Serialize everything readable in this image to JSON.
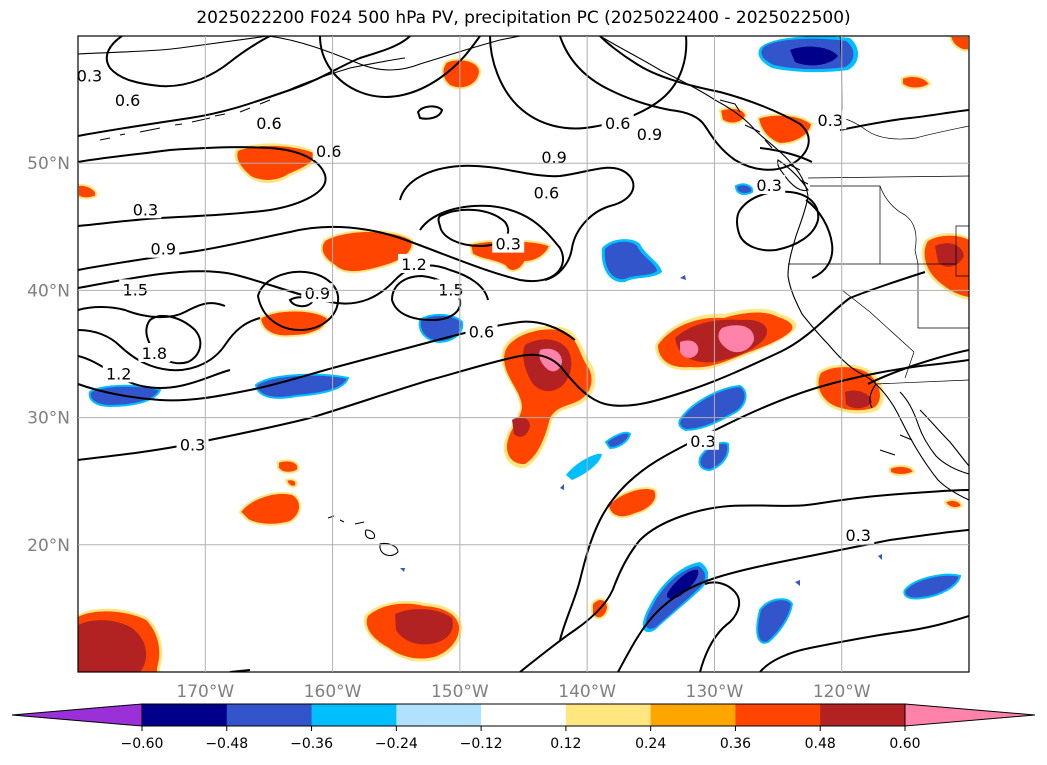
{
  "title": "2025022200 F024 500 hPa PV, precipitation PC (2025022400 - 2025022500)",
  "map": {
    "lon_range": [
      -180,
      -110
    ],
    "lat_range": [
      10,
      60
    ],
    "lon_ticks": [
      {
        "value": -170,
        "label": "170°W"
      },
      {
        "value": -160,
        "label": "160°W"
      },
      {
        "value": -150,
        "label": "150°W"
      },
      {
        "value": -140,
        "label": "140°W"
      },
      {
        "value": -130,
        "label": "130°W"
      },
      {
        "value": -120,
        "label": "120°W"
      }
    ],
    "lat_ticks": [
      {
        "value": 20,
        "label": "20°N"
      },
      {
        "value": 30,
        "label": "30°N"
      },
      {
        "value": 40,
        "label": "40°N"
      },
      {
        "value": 50,
        "label": "50°N"
      }
    ],
    "grid": true,
    "contour_labels": [
      {
        "text": "0.3",
        "lon": -179.1,
        "lat": 56.8
      },
      {
        "text": "0.6",
        "lon": -176.1,
        "lat": 54.9
      },
      {
        "text": "0.6",
        "lon": -165.0,
        "lat": 53.1
      },
      {
        "text": "0.6",
        "lon": -160.3,
        "lat": 50.9
      },
      {
        "text": "0.6",
        "lon": -137.6,
        "lat": 53.1
      },
      {
        "text": "0.9",
        "lon": -135.1,
        "lat": 52.2
      },
      {
        "text": "0.9",
        "lon": -142.6,
        "lat": 50.4
      },
      {
        "text": "0.3",
        "lon": -120.9,
        "lat": 53.3
      },
      {
        "text": "0.6",
        "lon": -143.2,
        "lat": 47.6
      },
      {
        "text": "0.3",
        "lon": -125.7,
        "lat": 48.2
      },
      {
        "text": "0.3",
        "lon": -174.7,
        "lat": 46.3
      },
      {
        "text": "0.3",
        "lon": -146.2,
        "lat": 43.6
      },
      {
        "text": "0.9",
        "lon": -173.3,
        "lat": 43.2
      },
      {
        "text": "1.2",
        "lon": -153.6,
        "lat": 42.0
      },
      {
        "text": "1.5",
        "lon": -150.7,
        "lat": 40.0
      },
      {
        "text": "1.5",
        "lon": -175.5,
        "lat": 40.0
      },
      {
        "text": "0.9",
        "lon": -161.2,
        "lat": 39.7
      },
      {
        "text": "0.6",
        "lon": -148.3,
        "lat": 36.7
      },
      {
        "text": "1.8",
        "lon": -174.0,
        "lat": 35.0
      },
      {
        "text": "1.2",
        "lon": -176.8,
        "lat": 33.4
      },
      {
        "text": "0.3",
        "lon": -171.0,
        "lat": 27.8
      },
      {
        "text": "0.3",
        "lon": -130.9,
        "lat": 28.1
      },
      {
        "text": "0.3",
        "lon": -118.7,
        "lat": 20.7
      }
    ]
  },
  "colorbar": {
    "ticks": [
      "−0.60",
      "−0.48",
      "−0.36",
      "−0.24",
      "−0.12",
      "0.12",
      "0.24",
      "0.36",
      "0.48",
      "0.60"
    ],
    "colors": [
      "#9b30d8",
      "#00008b",
      "#3355cc",
      "#00bfff",
      "#b0e2ff",
      "#ffffff",
      "#ffe680",
      "#ffa500",
      "#ff4500",
      "#b22222",
      "#ff82ab"
    ]
  },
  "colors": {
    "contour": "#000000",
    "coastline": "#000000",
    "grid": "#b0b0b0",
    "tick_label": "#7f7f7f"
  }
}
